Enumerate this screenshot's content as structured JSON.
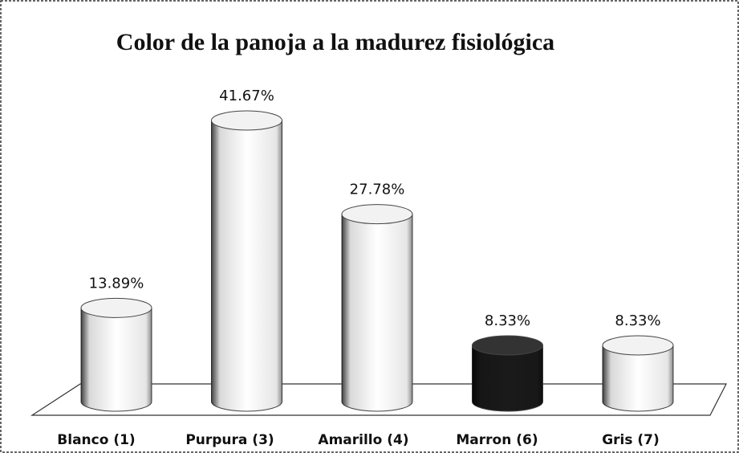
{
  "chart_data": {
    "type": "bar3d",
    "title": "Color de la panoja a la madurez fisiológica",
    "categories": [
      "Blanco (1)",
      "Purpura (3)",
      "Amarillo (4)",
      "Marron (6)",
      "Gris (7)"
    ],
    "values": [
      13.89,
      41.67,
      27.78,
      8.33,
      8.33
    ],
    "value_labels": [
      "13.89%",
      "41.67%",
      "27.78%",
      "8.33%",
      "8.33%"
    ],
    "colors": [
      "#ffffff",
      "#ffffff",
      "#ffffff",
      "#1a1a1a",
      "#ffffff"
    ]
  }
}
